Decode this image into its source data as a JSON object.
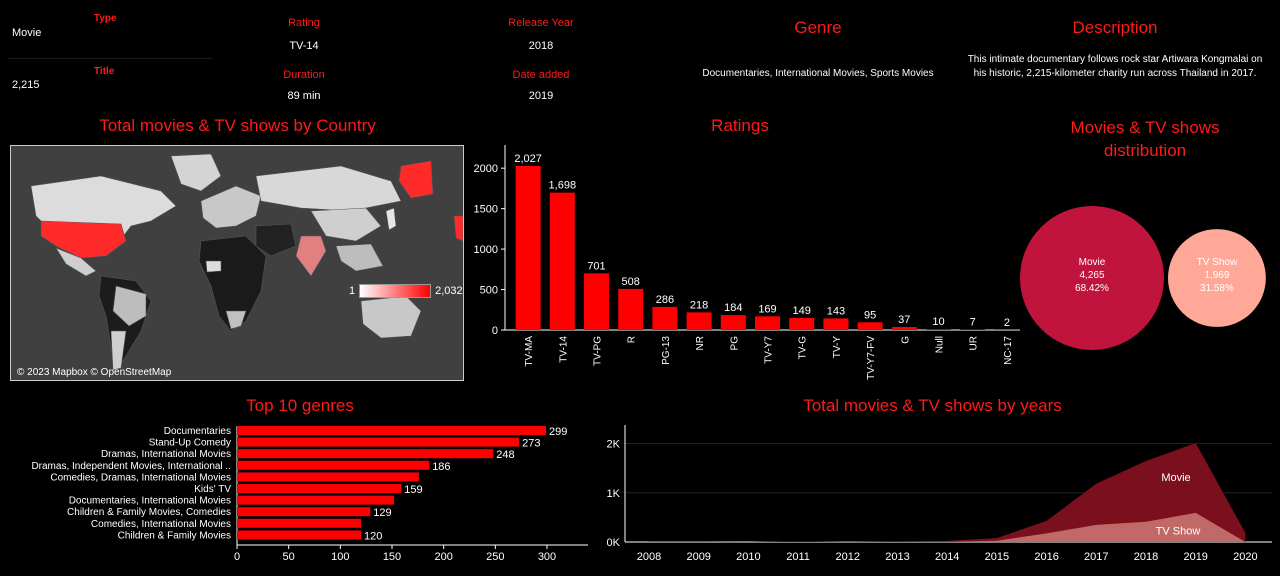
{
  "details": {
    "type_label": "Type",
    "type_value": "Movie",
    "title_label": "Title",
    "title_value": "2,215",
    "rating_label": "Rating",
    "rating_value": "TV-14",
    "duration_label": "Duration",
    "duration_value": "89 min",
    "release_year_label": "Release Year",
    "release_year_value": "2018",
    "date_added_label": "Date added",
    "date_added_value": "2019",
    "genre_title": "Genre",
    "genre_value": "Documentaries, International Movies, Sports Movies",
    "description_title": "Description",
    "description_value": "This intimate documentary follows rock star Artiwara Kongmalai on his historic, 2,215-kilometer charity run across Thailand in 2017."
  },
  "map_section": {
    "title": "Total movies & TV shows by Country",
    "legend_min": "1",
    "legend_max": "2,032",
    "attribution": "© 2023 Mapbox © OpenStreetMap",
    "colors": {
      "ocean": "#404040",
      "land": "#1a1a1a",
      "low": "#ffffff",
      "high": "#ff0000"
    }
  },
  "ratings_title": "Ratings",
  "distribution_title_line1": "Movies & TV shows",
  "distribution_title_line2": "distribution",
  "genres_title": "Top 10 genres",
  "years_title": "Total movies & TV shows by years",
  "chart_data": [
    {
      "type": "bar",
      "name": "ratings",
      "categories": [
        "TV-MA",
        "TV-14",
        "TV-PG",
        "R",
        "PG-13",
        "NR",
        "PG",
        "TV-Y7",
        "TV-G",
        "TV-Y",
        "TV-Y7-FV",
        "G",
        "Null",
        "UR",
        "NC-17"
      ],
      "values": [
        2027,
        1698,
        701,
        508,
        286,
        218,
        184,
        169,
        149,
        143,
        95,
        37,
        10,
        7,
        2
      ],
      "value_labels": [
        "2,027",
        "1,698",
        "701",
        "508",
        "286",
        "218",
        "184",
        "169",
        "149",
        "143",
        "95",
        "37",
        "10",
        "7",
        "2"
      ],
      "yticks": [
        0,
        500,
        1000,
        1500,
        2000
      ],
      "ytick_labels": [
        "0",
        "500",
        "1000",
        "1500",
        "2000"
      ],
      "ylim": [
        0,
        2200
      ],
      "color": "#ff0000"
    },
    {
      "type": "pie",
      "name": "distribution",
      "slices": [
        {
          "label": "Movie",
          "value": 4265,
          "value_label": "4,265",
          "percent": "68.42%",
          "color": "#c0143c"
        },
        {
          "label": "TV Show",
          "value": 1969,
          "value_label": "1,969",
          "percent": "31.58%",
          "color": "#ffa898"
        }
      ]
    },
    {
      "type": "bar",
      "name": "top_genres",
      "orientation": "horizontal",
      "categories": [
        "Documentaries",
        "Stand-Up Comedy",
        "Dramas, International Movies",
        "Dramas, Independent Movies, International ..",
        "Comedies, Dramas, International Movies",
        "Kids' TV",
        "Documentaries, International Movies",
        "Children & Family Movies, Comedies",
        "Comedies, International Movies",
        "Children & Family Movies"
      ],
      "values": [
        299,
        273,
        248,
        186,
        176,
        159,
        152,
        129,
        120,
        120
      ],
      "value_labels": [
        "299",
        "273",
        "248",
        "186",
        "",
        "159",
        "",
        "129",
        "",
        "120"
      ],
      "xticks": [
        0,
        50,
        100,
        150,
        200,
        250,
        300
      ],
      "xtick_labels": [
        "0",
        "50",
        "100",
        "150",
        "200",
        "250",
        "300"
      ],
      "xlim": [
        0,
        330
      ],
      "color": "#ff0000"
    },
    {
      "type": "area",
      "name": "by_years",
      "x": [
        "2008",
        "2009",
        "2010",
        "2011",
        "2012",
        "2013",
        "2014",
        "2015",
        "2016",
        "2017",
        "2018",
        "2019",
        "2020"
      ],
      "series": [
        {
          "name": "Movie",
          "values": [
            1,
            2,
            1,
            13,
            3,
            6,
            19,
            56,
            253,
            839,
            1237,
            1424,
            184
          ],
          "color": "#7a0f1e"
        },
        {
          "name": "TV Show",
          "values": [
            1,
            0,
            0,
            0,
            0,
            5,
            5,
            26,
            176,
            349,
            412,
            592,
            0
          ],
          "color": "#d88880"
        }
      ],
      "totals": [
        2,
        2,
        1,
        13,
        3,
        11,
        24,
        82,
        429,
        1188,
        1649,
        2016,
        184
      ],
      "yticks": [
        0,
        1000,
        2000
      ],
      "ytick_labels": [
        "0K",
        "1K",
        "2K"
      ],
      "ylim": [
        0,
        2300
      ]
    }
  ]
}
